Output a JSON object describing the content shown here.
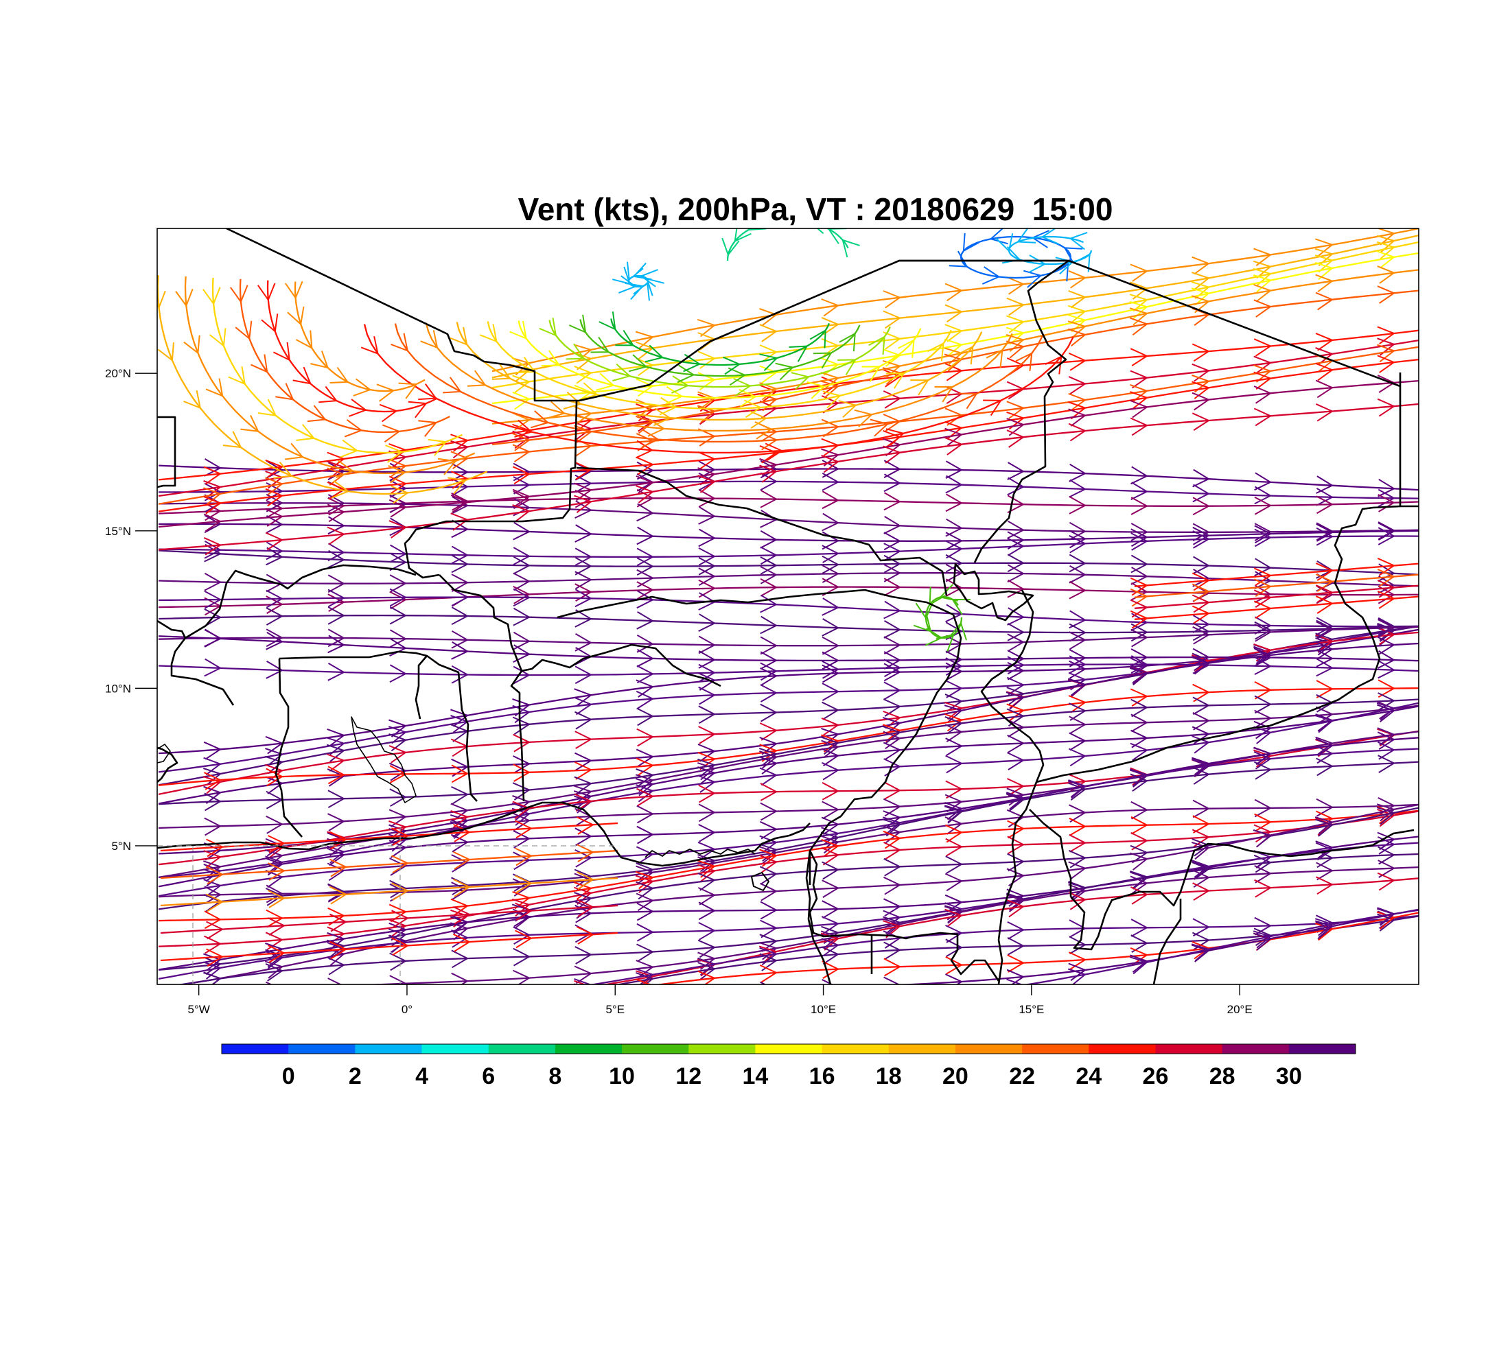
{
  "title": "Vent (kts), 200hPa, VT : 20180629  15:00",
  "map": {
    "lon_range": [
      -6,
      24.3
    ],
    "lat_range": [
      0.6,
      24.6
    ],
    "lon_ticks": [
      {
        "value": -5,
        "label": "5°W"
      },
      {
        "value": 0,
        "label": "0°"
      },
      {
        "value": 5,
        "label": "5°E"
      },
      {
        "value": 10,
        "label": "10°E"
      },
      {
        "value": 15,
        "label": "15°E"
      },
      {
        "value": 20,
        "label": "20°E"
      }
    ],
    "lat_ticks": [
      {
        "value": 20,
        "label": "20°N"
      },
      {
        "value": 15,
        "label": "15°N"
      },
      {
        "value": 10,
        "label": "10°N"
      },
      {
        "value": 5,
        "label": "5°N"
      }
    ],
    "coastline_color": "#000000",
    "streamline_style": "streamlines with arrow barbs colored by wind speed"
  },
  "colorbar": {
    "labels": [
      "0",
      "2",
      "4",
      "6",
      "8",
      "10",
      "12",
      "14",
      "16",
      "18",
      "20",
      "22",
      "24",
      "26",
      "28",
      "30"
    ],
    "colors": [
      "#0b1dfb",
      "#0066f5",
      "#00b4f8",
      "#00f0dc",
      "#00d27f",
      "#00b12c",
      "#46bd0d",
      "#9ae000",
      "#fdfb00",
      "#ffd600",
      "#ffb300",
      "#ff8c00",
      "#ff5a00",
      "#ff1200",
      "#d6002e",
      "#900062",
      "#57007e"
    ]
  }
}
